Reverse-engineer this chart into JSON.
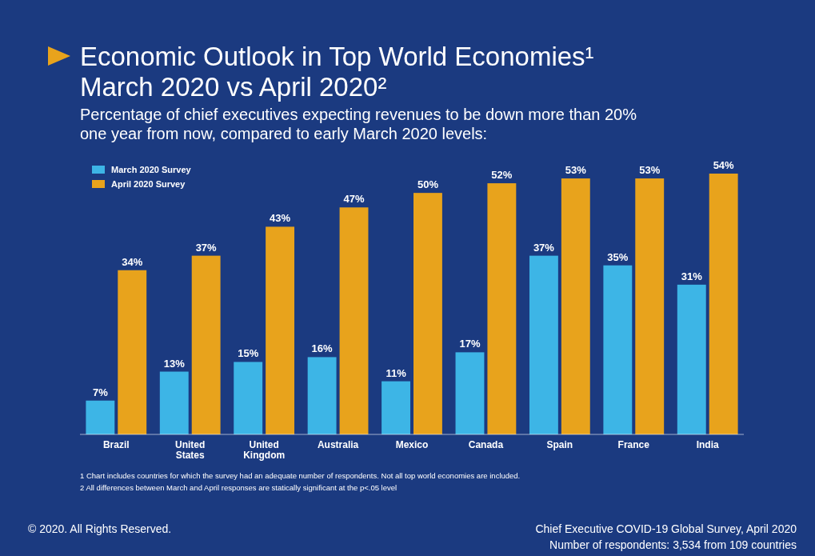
{
  "chart_data": {
    "type": "bar",
    "title": "Economic Outlook in Top World Economies¹\nMarch 2020 vs April 2020²",
    "subtitle": "Percentage of chief executives expecting revenues to be down more than 20%\none year from now, compared to early March 2020 levels:",
    "categories": [
      "Brazil",
      "United States",
      "United Kingdom",
      "Australia",
      "Mexico",
      "Canada",
      "Spain",
      "France",
      "India"
    ],
    "series": [
      {
        "name": "March 2020 Survey",
        "color": "#3db5e6",
        "values": [
          7,
          13,
          15,
          16,
          11,
          17,
          37,
          35,
          31
        ],
        "value_labels": [
          "7%",
          "13%",
          "15%",
          "16%",
          "11%",
          "17%",
          "37%",
          "35%",
          "31%"
        ]
      },
      {
        "name": "April 2020 Survey",
        "color": "#e8a31c",
        "values": [
          34,
          37,
          43,
          47,
          50,
          52,
          53,
          53,
          54
        ],
        "value_labels": [
          "34%",
          "37%",
          "43%",
          "47%",
          "50%",
          "52%",
          "53%",
          "53%",
          "54%"
        ]
      }
    ],
    "legend": "top left",
    "annotations": [
      "1  Chart includes countries for which the survey had an adequate number of respondents. Not all top world economies are included.",
      "2  All differences between March and April responses are statically significant at the p<.05 level",
      "© 2020. All Rights Reserved.",
      "Chief Executive COVID-19 Global Survey, April 2020",
      "Number of respondents: 3,534 from 109 countries"
    ]
  }
}
